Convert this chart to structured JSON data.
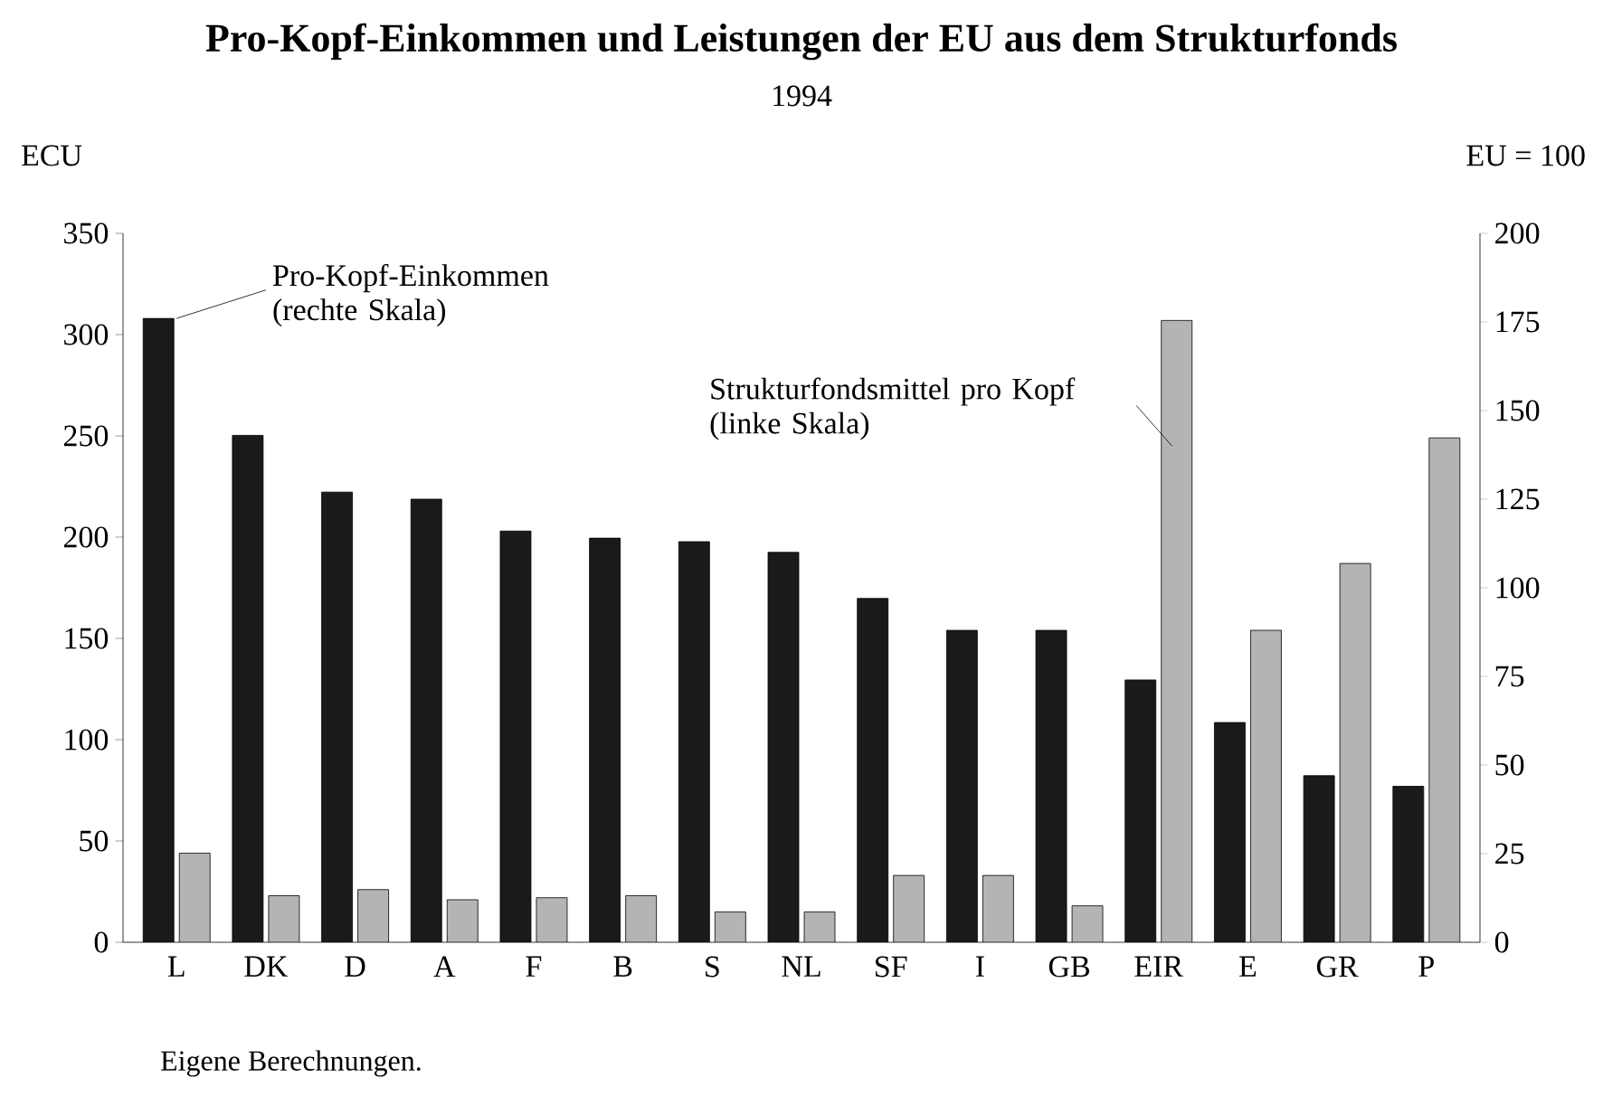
{
  "chart_data": {
    "type": "bar",
    "title": "Pro-Kopf-Einkommen und Leistungen der EU aus dem Strukturfonds",
    "subtitle": "1994",
    "ylabel": "ECU",
    "y2label": "EU = 100",
    "categories": [
      "L",
      "DK",
      "D",
      "A",
      "F",
      "B",
      "S",
      "NL",
      "SF",
      "I",
      "GB",
      "EIR",
      "E",
      "GR",
      "P"
    ],
    "series": [
      {
        "name": "Pro-Kopf-Einkommen (rechte Skala)",
        "color": "#1a1a1a",
        "axis": "y2",
        "values": [
          176,
          143,
          127,
          125,
          116,
          114,
          113,
          110,
          97,
          88,
          88,
          74,
          62,
          47,
          44
        ]
      },
      {
        "name": "Strukturfondsmittel pro Kopf (linke Skala)",
        "color": "#b4b4b4",
        "values": [
          44,
          23,
          26,
          21,
          22,
          23,
          15,
          15,
          33,
          33,
          18,
          307,
          154,
          187,
          249
        ]
      }
    ],
    "ylim": [
      0,
      350
    ],
    "yticks": [
      0,
      50,
      100,
      150,
      200,
      250,
      300,
      350
    ],
    "y2lim": [
      0,
      200
    ],
    "y2ticks": [
      0,
      25,
      50,
      75,
      100,
      125,
      150,
      175,
      200
    ],
    "grid": false,
    "legend": false,
    "annotations": [
      "Eigene Berechnungen."
    ]
  }
}
